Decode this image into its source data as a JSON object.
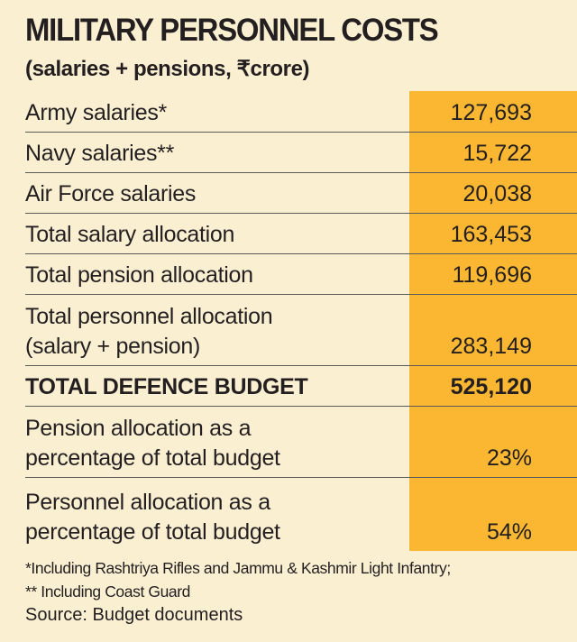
{
  "header": {
    "title": "MILITARY PERSONNEL COSTS",
    "subtitle": "(salaries + pensions, ₹crore)"
  },
  "rows": [
    {
      "label": [
        "Army salaries*"
      ],
      "value": "127,693",
      "bold": false
    },
    {
      "label": [
        "Navy salaries**"
      ],
      "value": "15,722",
      "bold": false
    },
    {
      "label": [
        "Air Force salaries"
      ],
      "value": "20,038",
      "bold": false
    },
    {
      "label": [
        "Total salary allocation"
      ],
      "value": "163,453",
      "bold": false
    },
    {
      "label": [
        "Total pension allocation"
      ],
      "value": "119,696",
      "bold": false
    },
    {
      "label": [
        "Total personnel allocation",
        "(salary + pension)"
      ],
      "value": "283,149",
      "bold": false
    },
    {
      "label": [
        "TOTAL DEFENCE BUDGET"
      ],
      "value": "525,120",
      "bold": true
    },
    {
      "label": [
        "Pension allocation as a",
        "percentage of total budget"
      ],
      "value": "23%",
      "bold": false
    },
    {
      "label": [
        "Personnel allocation as a",
        "percentage of total budget"
      ],
      "value": "54%",
      "bold": false
    }
  ],
  "footnotes": {
    "note1": "*Including Rashtriya Rifles and Jammu & Kashmir Light Infantry;",
    "note2": "** Including Coast Guard",
    "source": "Source: Budget documents"
  },
  "colors": {
    "background": "#fbefd2",
    "value_column": "#fbb731",
    "text": "#231f20",
    "divider": "#5a5a5a"
  }
}
